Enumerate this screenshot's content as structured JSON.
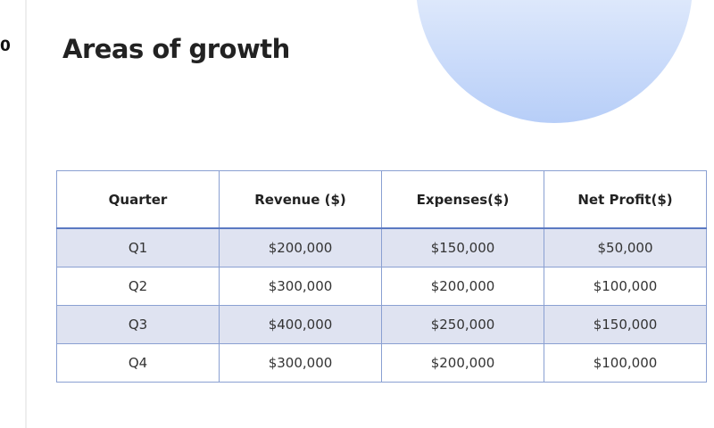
{
  "slide": {
    "number": "0",
    "title": "Areas of growth"
  },
  "table": {
    "headers": [
      "Quarter",
      "Revenue ($)",
      "Expenses($)",
      "Net Profit($)"
    ],
    "rows": [
      [
        "Q1",
        "$200,000",
        "$150,000",
        "$50,000"
      ],
      [
        "Q2",
        "$300,000",
        "$200,000",
        "$100,000"
      ],
      [
        "Q3",
        "$400,000",
        "$250,000",
        "$150,000"
      ],
      [
        "Q4",
        "$300,000",
        "$200,000",
        "$100,000"
      ]
    ]
  },
  "colors": {
    "header_border": "#5b79c2",
    "shaded_row": "#dfe3f1",
    "gridline": "#8aa0d2"
  }
}
